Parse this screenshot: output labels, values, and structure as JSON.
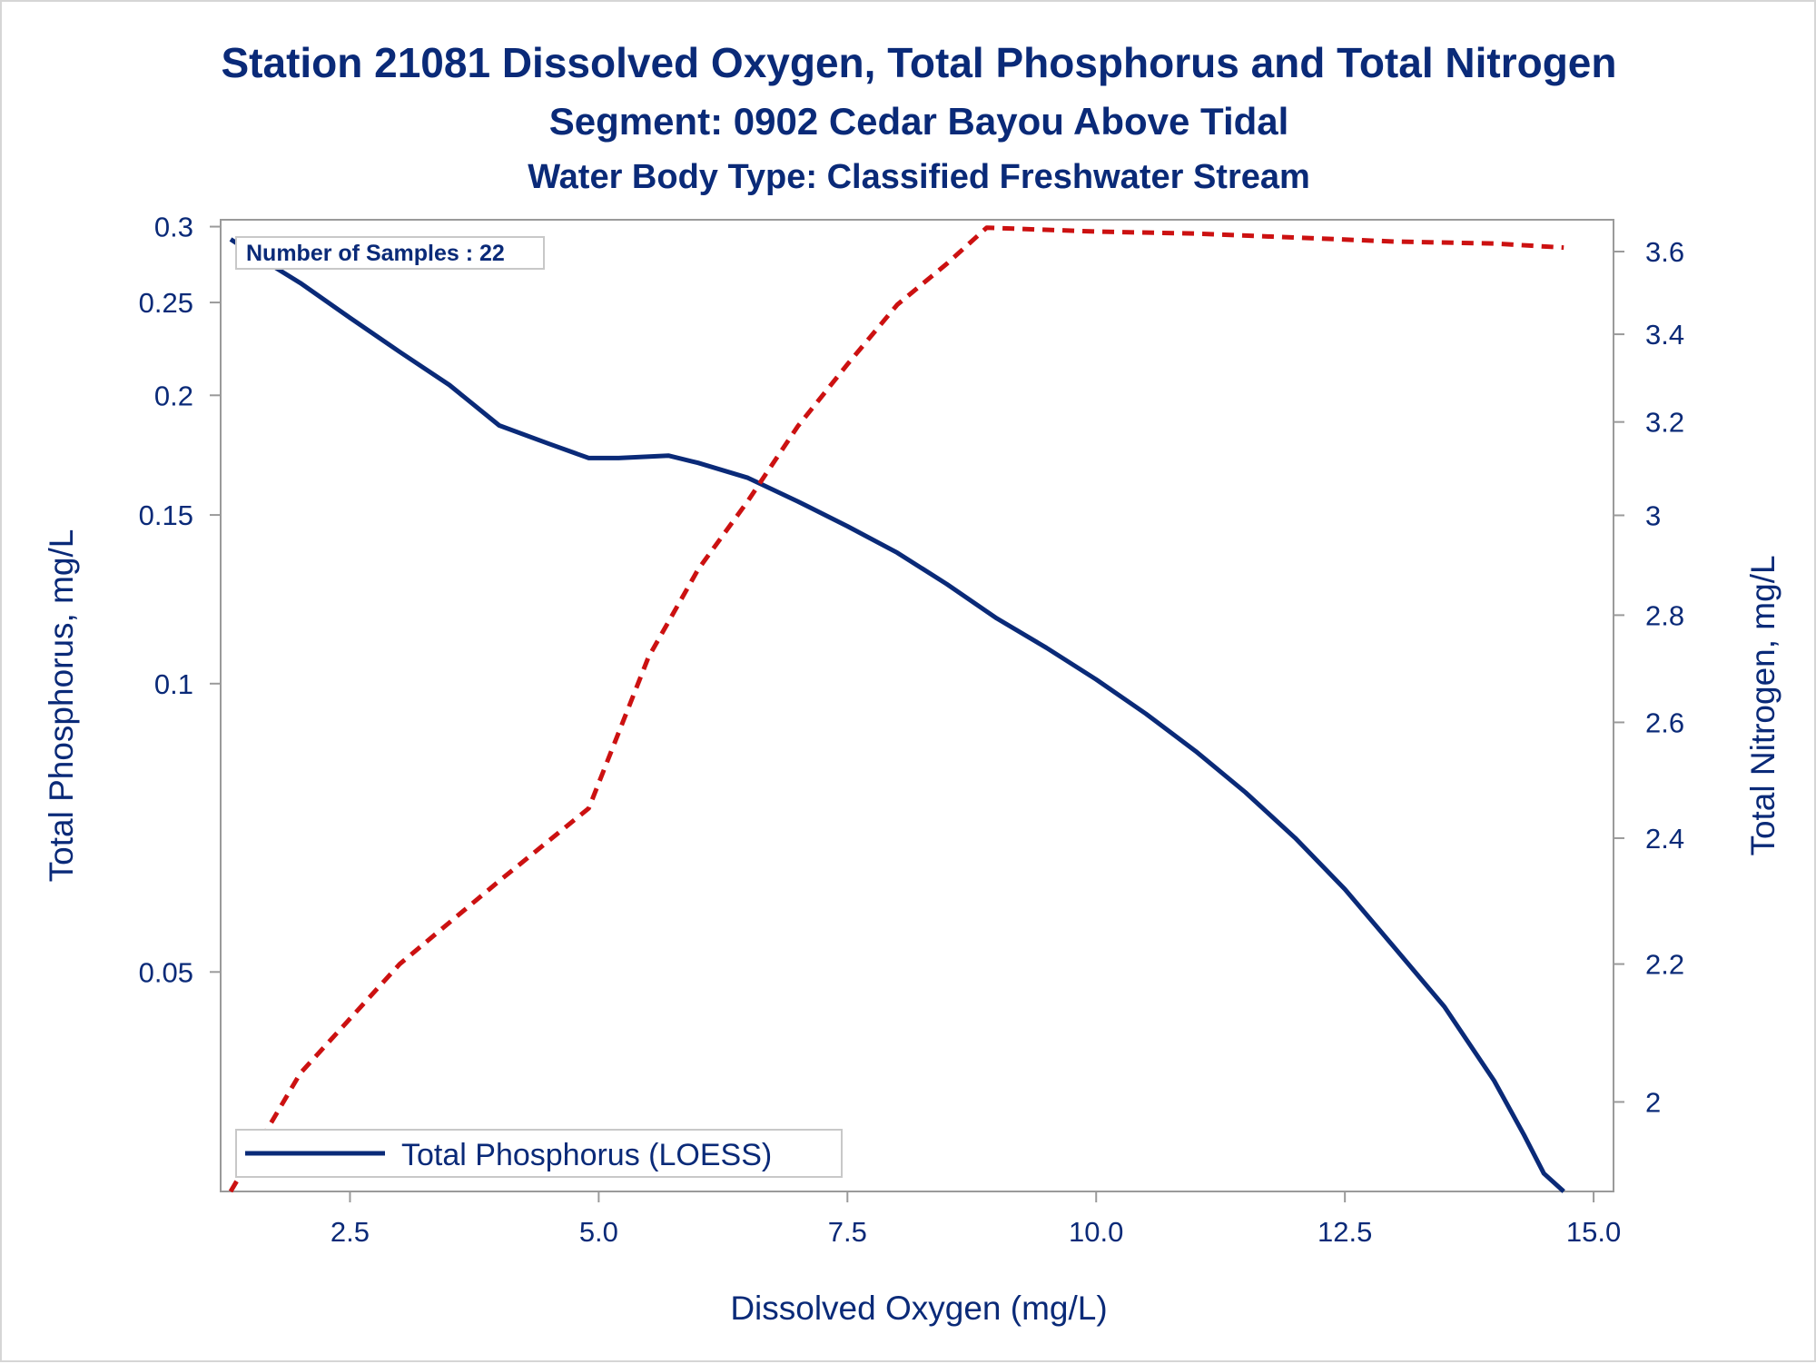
{
  "titles": {
    "title": "Station 21081  Dissolved Oxygen, Total Phosphorus and Total Nitrogen",
    "subtitle": "Segment: 0902  Cedar Bayou Above Tidal",
    "subtitle2": "Water Body Type: Classified Freshwater Stream"
  },
  "inset_label": "Number of Samples : 22",
  "legend": {
    "phosphorus_label": "Total Phosphorus (LOESS)"
  },
  "colors": {
    "text": "#0a2a78",
    "phosphorus": "#0a2a78",
    "nitrogen": "#cc1111",
    "axis": "#9a9a9a"
  },
  "chart_data": {
    "type": "line",
    "xlabel": "Dissolved Oxygen (mg/L)",
    "ylabel": "Total Phosphorus, mg/L",
    "y2label": "Total Nitrogen, mg/L",
    "xlim": [
      1.2,
      15.2
    ],
    "ylim": [
      0.0295,
      0.305
    ],
    "yscale": "log",
    "y2lim": [
      1.88,
      3.68
    ],
    "y2scale": "log",
    "xticks": [
      "2.5",
      "5.0",
      "7.5",
      "10.0",
      "12.5",
      "15.0"
    ],
    "yticks": [
      "0.05",
      "0.1",
      "0.15",
      "0.2",
      "0.25",
      "0.3"
    ],
    "y2ticks": [
      "2",
      "2.2",
      "2.4",
      "2.6",
      "2.8",
      "3",
      "3.2",
      "3.4",
      "3.6"
    ],
    "series": [
      {
        "name": "Total Phosphorus (LOESS)",
        "axis": "left",
        "style": "solid",
        "x": [
          1.3,
          1.6,
          2.0,
          2.5,
          3.0,
          3.5,
          4.0,
          4.5,
          4.9,
          5.2,
          5.7,
          6.0,
          6.5,
          7.0,
          7.5,
          8.0,
          8.5,
          9.0,
          9.5,
          10.0,
          10.5,
          11.0,
          11.5,
          12.0,
          12.5,
          13.0,
          13.5,
          14.0,
          14.3,
          14.5,
          14.7
        ],
        "values": [
          0.291,
          0.278,
          0.262,
          0.241,
          0.222,
          0.205,
          0.186,
          0.178,
          0.172,
          0.172,
          0.173,
          0.17,
          0.164,
          0.155,
          0.146,
          0.137,
          0.127,
          0.117,
          0.109,
          0.101,
          0.093,
          0.085,
          0.077,
          0.069,
          0.061,
          0.053,
          0.046,
          0.0385,
          0.0338,
          0.0308,
          0.0295
        ]
      },
      {
        "name": "Total Nitrogen",
        "axis": "right",
        "style": "dashed",
        "x": [
          1.3,
          2.0,
          3.0,
          4.0,
          4.9,
          5.5,
          6.0,
          6.5,
          7.0,
          7.5,
          8.0,
          8.5,
          8.9,
          10.0,
          11.0,
          12.0,
          13.0,
          14.0,
          14.7
        ],
        "values": [
          1.88,
          2.04,
          2.2,
          2.33,
          2.45,
          2.72,
          2.89,
          3.03,
          3.19,
          3.33,
          3.47,
          3.57,
          3.66,
          3.65,
          3.645,
          3.635,
          3.625,
          3.62,
          3.61
        ]
      }
    ]
  }
}
